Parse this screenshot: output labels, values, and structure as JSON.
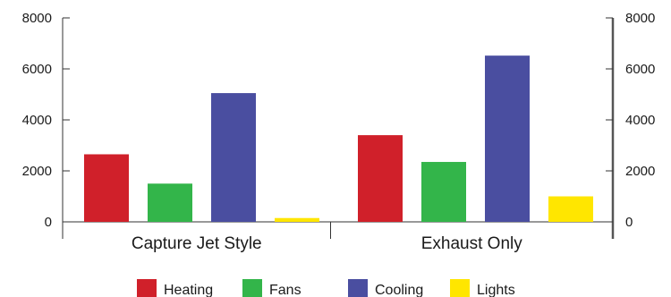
{
  "chart_data": {
    "type": "bar",
    "categories": [
      "Capture Jet Style",
      "Exhaust Only"
    ],
    "series": [
      {
        "name": "Heating",
        "color": "#d0202a",
        "values": [
          2650,
          3400
        ]
      },
      {
        "name": "Fans",
        "color": "#33b54a",
        "values": [
          1500,
          2350
        ]
      },
      {
        "name": "Cooling",
        "color": "#4a4ea0",
        "values": [
          5050,
          6520
        ]
      },
      {
        "name": "Lights",
        "color": "#ffe600",
        "values": [
          150,
          1000
        ]
      }
    ],
    "ylim": [
      0,
      8000
    ],
    "yticks": [
      "0",
      "2000",
      "4000",
      "6000",
      "8000"
    ],
    "grid": false,
    "legend_position": "bottom"
  }
}
